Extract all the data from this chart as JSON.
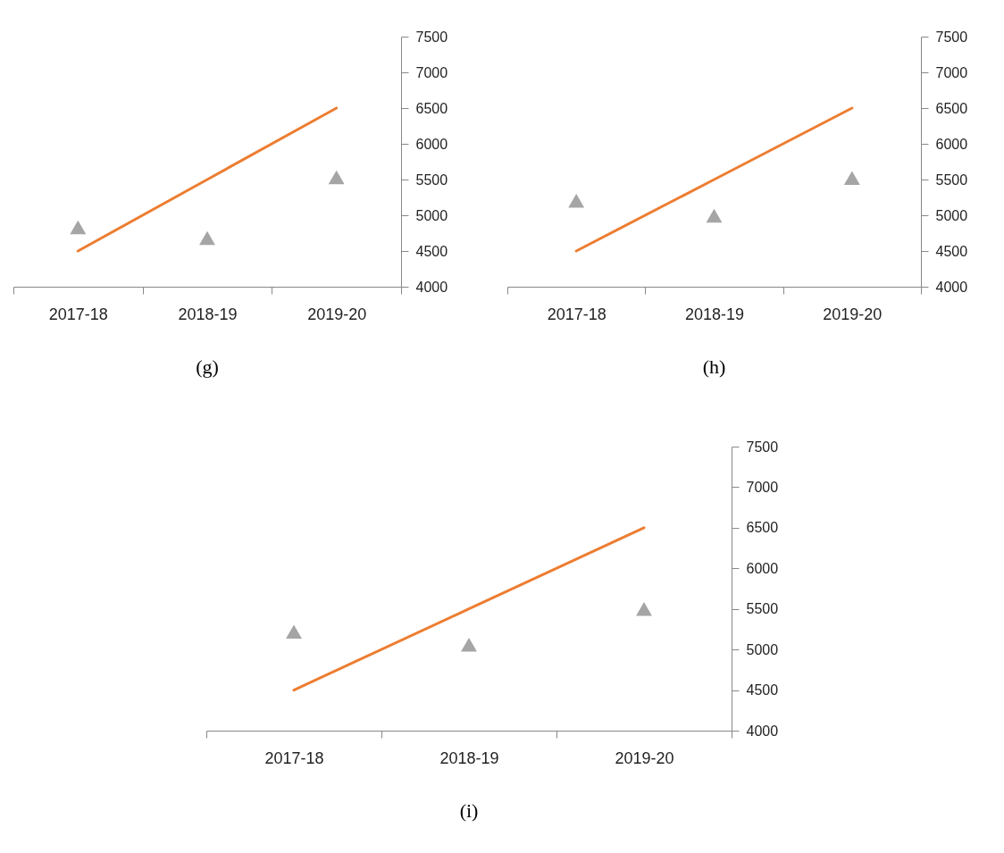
{
  "chart_data": [
    {
      "type": "line",
      "title": "(g)",
      "categories": [
        "2017-18",
        "2018-19",
        "2019-20"
      ],
      "ylim": [
        4000,
        7500
      ],
      "yticks": [
        4000,
        4500,
        5000,
        5500,
        6000,
        6500,
        7000,
        7500
      ],
      "grid": false,
      "series": [
        {
          "type": "line",
          "color": "#ed7d31",
          "line_style": "solid",
          "marker": "none",
          "values": [
            4500,
            5500,
            6500
          ]
        },
        {
          "type": "scatter",
          "color": "#a5a5a5",
          "marker": "triangle",
          "x": [
            "2017-18",
            "2018-19",
            "2019-20"
          ],
          "values": [
            4800,
            4650,
            5500
          ]
        }
      ]
    },
    {
      "type": "line",
      "title": "(h)",
      "categories": [
        "2017-18",
        "2018-19",
        "2019-20"
      ],
      "ylim": [
        4000,
        7500
      ],
      "yticks": [
        4000,
        4500,
        5000,
        5500,
        6000,
        6500,
        7000,
        7500
      ],
      "grid": false,
      "series": [
        {
          "type": "line",
          "color": "#ed7d31",
          "line_style": "solid",
          "marker": "none",
          "values": [
            4500,
            5500,
            6500
          ]
        },
        {
          "type": "scatter",
          "color": "#a5a5a5",
          "marker": "triangle",
          "x": [
            "2017-18",
            "2018-19",
            "2019-20"
          ],
          "values": [
            5170,
            4960,
            5490
          ]
        }
      ]
    },
    {
      "type": "line",
      "title": "(i)",
      "categories": [
        "2017-18",
        "2018-19",
        "2019-20"
      ],
      "ylim": [
        4000,
        7500
      ],
      "yticks": [
        4000,
        4500,
        5000,
        5500,
        6000,
        6500,
        7000,
        7500
      ],
      "grid": false,
      "series": [
        {
          "type": "line",
          "color": "#ed7d31",
          "line_style": "solid",
          "marker": "none",
          "values": [
            4500,
            5500,
            6500
          ]
        },
        {
          "type": "scatter",
          "color": "#a5a5a5",
          "marker": "triangle",
          "x": [
            "2017-18",
            "2018-19",
            "2019-20"
          ],
          "values": [
            5190,
            5030,
            5470
          ]
        }
      ]
    }
  ]
}
